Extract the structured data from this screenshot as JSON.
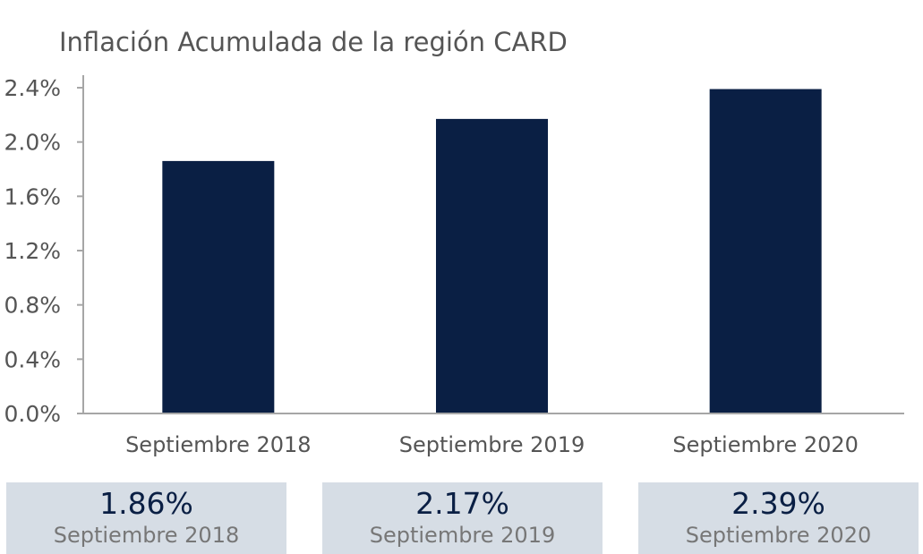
{
  "chart_data": {
    "type": "bar",
    "title": "Inflación Acumulada de la región CARD",
    "categories": [
      "Septiembre 2018",
      "Septiembre 2019",
      "Septiembre 2020"
    ],
    "values": [
      1.86,
      2.17,
      2.39
    ],
    "unit": "%",
    "ylim": [
      0,
      2.4
    ],
    "yticks": [
      "0.0%",
      "0.4%",
      "0.8%",
      "1.2%",
      "1.6%",
      "2.0%",
      "2.4%"
    ],
    "xlabel": "",
    "ylabel": "",
    "grid": false,
    "bar_color": "#0a1f44"
  },
  "summary_cards": [
    {
      "value": "1.86%",
      "label": "Septiembre 2018"
    },
    {
      "value": "2.17%",
      "label": "Septiembre 2019"
    },
    {
      "value": "2.39%",
      "label": "Septiembre 2020"
    }
  ],
  "colors": {
    "bar": "#0a1f44",
    "card_background": "#d6dde5",
    "axis": "#a6a6a6"
  }
}
